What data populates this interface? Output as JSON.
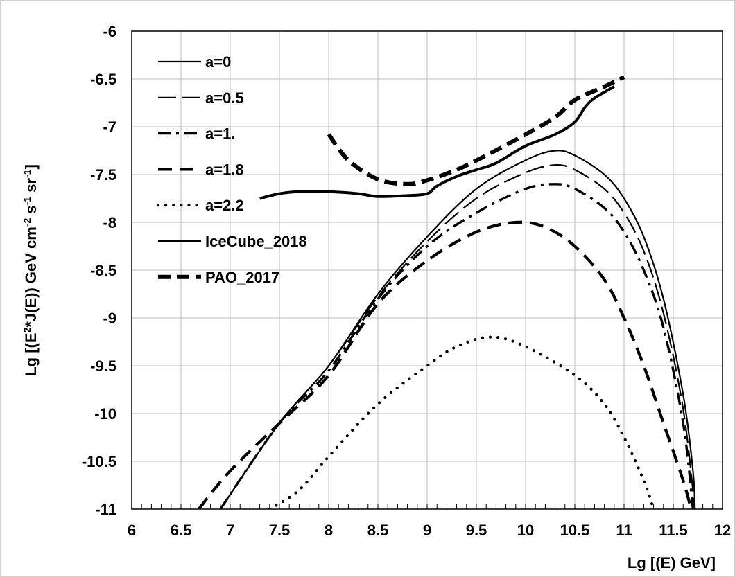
{
  "chart_data": {
    "type": "line",
    "xlabel": "Lg [(E) GeV]",
    "ylabel_parts": [
      "Lg [(E",
      "2",
      "*J(E)) GeV cm",
      "-2",
      " s",
      "-1",
      " sr",
      "-1",
      "]"
    ],
    "xlim": [
      6,
      12
    ],
    "ylim": [
      -11,
      -6
    ],
    "x_ticks": [
      "6",
      "6.5",
      "7",
      "7.5",
      "8",
      "8.5",
      "9",
      "9.5",
      "10",
      "10.5",
      "11",
      "11.5",
      "12"
    ],
    "y_ticks": [
      "-6",
      "-6.5",
      "-7",
      "-7.5",
      "-8",
      "-8.5",
      "-9",
      "-9.5",
      "-10",
      "-10.5",
      "-11"
    ],
    "grid": true,
    "legend_position": "top-left",
    "series": [
      {
        "name": "a=0",
        "style": "solid-thin",
        "x": [
          6.9,
          7.5,
          8.0,
          8.5,
          9.0,
          9.5,
          10.0,
          10.3,
          10.5,
          10.8,
          11.0,
          11.2,
          11.4,
          11.6,
          11.7,
          11.72
        ],
        "y": [
          -11.0,
          -10.1,
          -9.5,
          -8.75,
          -8.15,
          -7.65,
          -7.35,
          -7.25,
          -7.3,
          -7.5,
          -7.75,
          -8.15,
          -8.8,
          -9.8,
          -10.6,
          -11.0
        ]
      },
      {
        "name": "a=0.5",
        "style": "long-dash-thin",
        "x": [
          6.9,
          7.5,
          8.0,
          8.5,
          9.0,
          9.5,
          10.0,
          10.3,
          10.5,
          10.8,
          11.0,
          11.2,
          11.4,
          11.6,
          11.72
        ],
        "y": [
          -11.0,
          -10.1,
          -9.5,
          -8.78,
          -8.2,
          -7.75,
          -7.48,
          -7.4,
          -7.45,
          -7.65,
          -7.9,
          -8.3,
          -8.95,
          -9.95,
          -11.0
        ]
      },
      {
        "name": "a=1.",
        "style": "dash-dot",
        "x": [
          6.9,
          7.5,
          8.0,
          8.5,
          9.0,
          9.5,
          10.0,
          10.3,
          10.5,
          10.8,
          11.0,
          11.2,
          11.4,
          11.6,
          11.7
        ],
        "y": [
          -11.0,
          -10.1,
          -9.55,
          -8.8,
          -8.25,
          -7.9,
          -7.65,
          -7.6,
          -7.65,
          -7.85,
          -8.1,
          -8.5,
          -9.1,
          -10.1,
          -11.0
        ]
      },
      {
        "name": "a=1.8",
        "style": "dash-thick",
        "x": [
          6.68,
          7.0,
          7.5,
          8.0,
          8.5,
          9.0,
          9.5,
          9.9,
          10.2,
          10.5,
          10.8,
          11.0,
          11.2,
          11.4,
          11.6,
          11.68
        ],
        "y": [
          -11.0,
          -10.6,
          -10.1,
          -9.6,
          -8.85,
          -8.4,
          -8.1,
          -8.0,
          -8.05,
          -8.25,
          -8.6,
          -9.0,
          -9.5,
          -10.1,
          -10.7,
          -11.0
        ]
      },
      {
        "name": "a=2.2",
        "style": "dotted",
        "x": [
          7.4,
          7.7,
          8.0,
          8.5,
          9.0,
          9.3,
          9.65,
          10.0,
          10.5,
          10.8,
          11.0,
          11.2,
          11.3
        ],
        "y": [
          -11.0,
          -10.8,
          -10.45,
          -9.9,
          -9.5,
          -9.3,
          -9.2,
          -9.3,
          -9.6,
          -9.9,
          -10.25,
          -10.7,
          -11.0
        ]
      },
      {
        "name": "IceCube_2018",
        "style": "solid-thick",
        "x": [
          7.3,
          7.5,
          7.7,
          8.0,
          8.3,
          8.5,
          8.8,
          9.0,
          9.1,
          9.3,
          9.5,
          9.7,
          10.0,
          10.3,
          10.5,
          10.6,
          10.7,
          10.9
        ],
        "y": [
          -7.75,
          -7.7,
          -7.68,
          -7.68,
          -7.7,
          -7.73,
          -7.72,
          -7.7,
          -7.62,
          -7.52,
          -7.45,
          -7.38,
          -7.2,
          -7.08,
          -6.95,
          -6.8,
          -6.7,
          -6.58
        ]
      },
      {
        "name": "PAO_2017",
        "style": "dash-heavy",
        "x": [
          8.0,
          8.2,
          8.5,
          8.8,
          9.0,
          9.3,
          9.6,
          10.0,
          10.3,
          10.5,
          10.8,
          11.0
        ],
        "y": [
          -7.08,
          -7.35,
          -7.55,
          -7.6,
          -7.56,
          -7.45,
          -7.3,
          -7.08,
          -6.9,
          -6.72,
          -6.58,
          -6.48
        ]
      }
    ]
  }
}
